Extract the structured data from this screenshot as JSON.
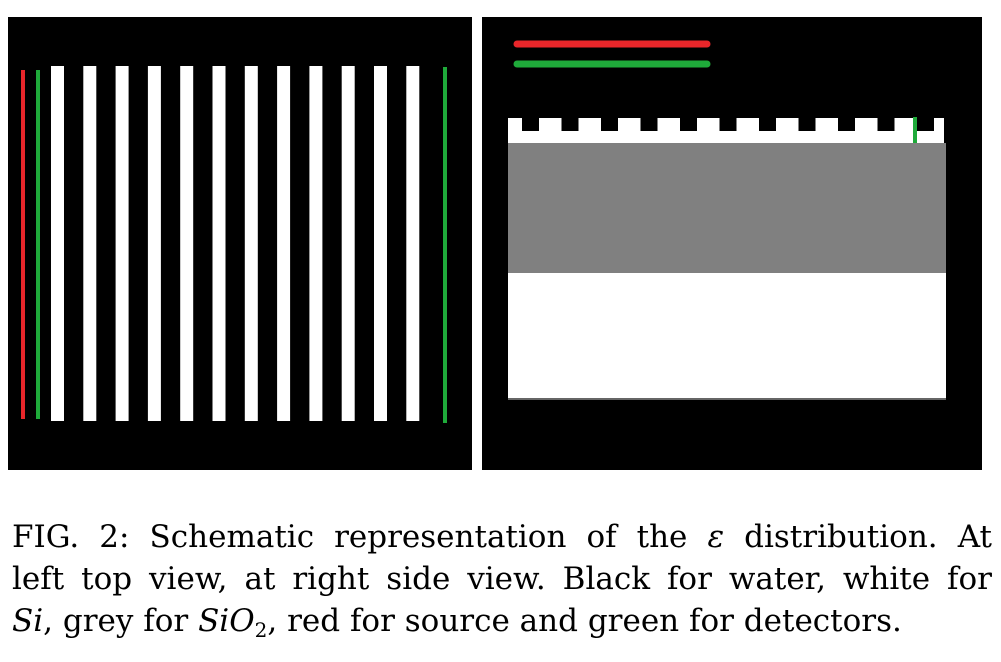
{
  "figure": {
    "colors": {
      "water": "#000000",
      "silicon": "#ffffff",
      "oxide": "#808080",
      "source": "#e8262a",
      "detector": "#1faa3a"
    },
    "top_view": {
      "stripe_count": 12
    },
    "side_view": {
      "tooth_count": 11
    }
  },
  "caption": {
    "label": "FIG. 2:",
    "line1_text": "Schematic representation of the",
    "symbol_epsilon": "ε",
    "line1_end": "distribution.  At",
    "line2": "left top view, at right side view.  Black for water, white for",
    "line3_si": "Si",
    "line3_mid": ", grey for",
    "line3_sio": "SiO",
    "line3_sub": "2",
    "line3_end": ", red for source and green for detectors."
  }
}
